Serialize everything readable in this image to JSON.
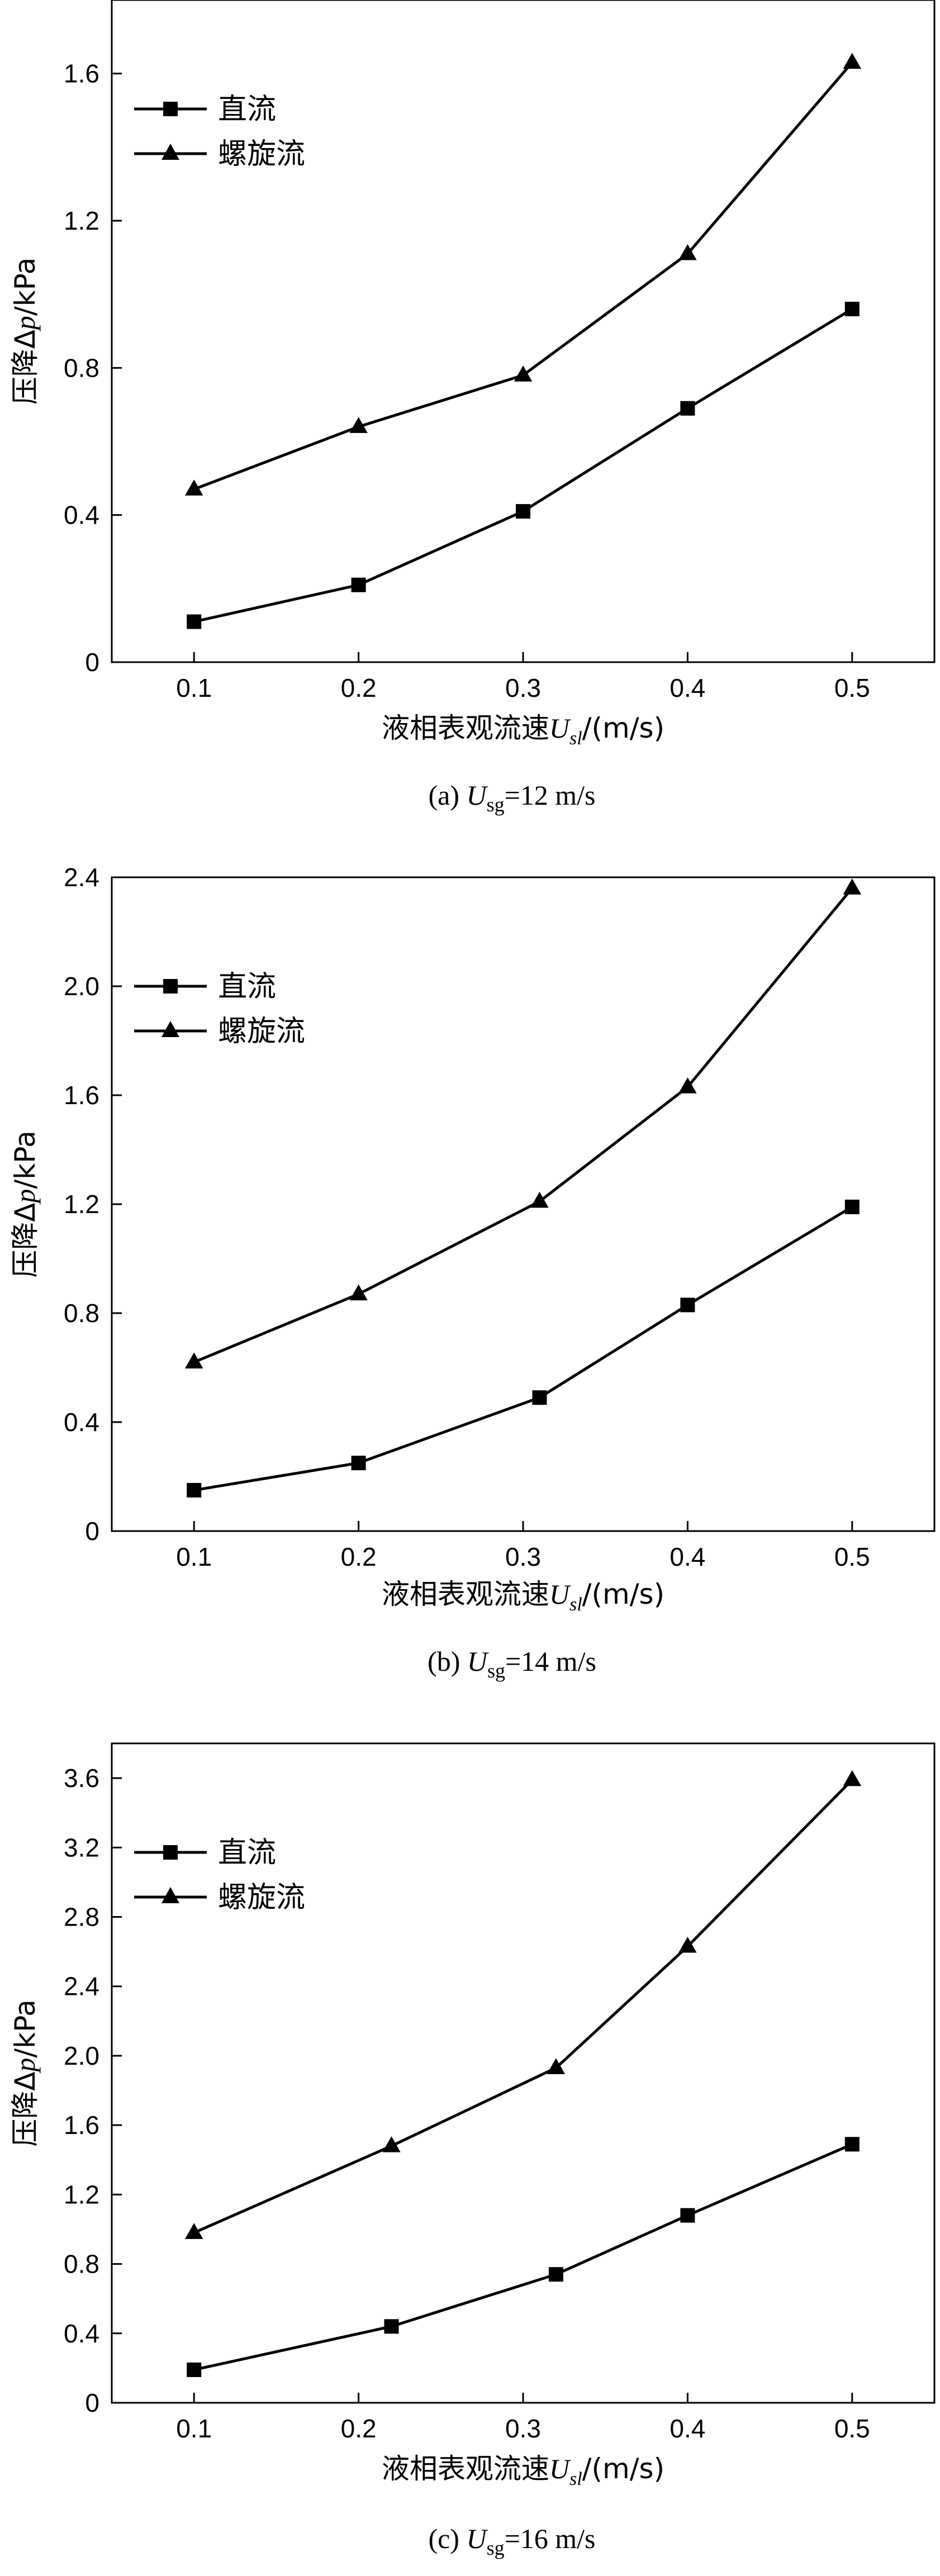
{
  "chart_data": [
    {
      "type": "line",
      "caption": {
        "prefix": "(a) ",
        "var": "U",
        "sub": "sg",
        "suffix": "=12 m/s"
      },
      "xlabel": {
        "text": "液相表观流速",
        "var": "U",
        "sub": "sl",
        "unit": "/(m/s)"
      },
      "ylabel": {
        "text": "压降Δ",
        "var": "p",
        "unit": "/kPa"
      },
      "xlim": [
        0.05,
        0.55
      ],
      "ylim": [
        0,
        1.8
      ],
      "x_ticks": [
        "0.1",
        "0.2",
        "0.3",
        "0.4",
        "0.5"
      ],
      "y_ticks": [
        "0",
        "0.4",
        "0.8",
        "1.2",
        "1.6"
      ],
      "legend_position": "top-left",
      "series": [
        {
          "name": "直流",
          "marker": "square",
          "x": [
            0.1,
            0.2,
            0.3,
            0.4,
            0.5
          ],
          "values": [
            0.11,
            0.21,
            0.41,
            0.69,
            0.96
          ]
        },
        {
          "name": "螺旋流",
          "marker": "triangle",
          "x": [
            0.1,
            0.2,
            0.3,
            0.4,
            0.5
          ],
          "values": [
            0.47,
            0.64,
            0.78,
            1.11,
            1.63
          ]
        }
      ]
    },
    {
      "type": "line",
      "caption": {
        "prefix": "(b) ",
        "var": "U",
        "sub": "sg",
        "suffix": "=14 m/s"
      },
      "xlabel": {
        "text": "液相表观流速",
        "var": "U",
        "sub": "sl",
        "unit": "/(m/s)"
      },
      "ylabel": {
        "text": "压降Δ",
        "var": "p",
        "unit": "/kPa"
      },
      "xlim": [
        0.05,
        0.55
      ],
      "ylim": [
        0,
        2.4
      ],
      "x_ticks": [
        "0.1",
        "0.2",
        "0.3",
        "0.4",
        "0.5"
      ],
      "y_ticks": [
        "0",
        "0.4",
        "0.8",
        "1.2",
        "1.6",
        "2.0",
        "2.4"
      ],
      "legend_position": "top-left",
      "series": [
        {
          "name": "直流",
          "marker": "square",
          "x": [
            0.1,
            0.2,
            0.31,
            0.4,
            0.5
          ],
          "values": [
            0.15,
            0.25,
            0.49,
            0.83,
            1.19
          ]
        },
        {
          "name": "螺旋流",
          "marker": "triangle",
          "x": [
            0.1,
            0.2,
            0.31,
            0.4,
            0.5
          ],
          "values": [
            0.62,
            0.87,
            1.21,
            1.63,
            2.36
          ]
        }
      ]
    },
    {
      "type": "line",
      "caption": {
        "prefix": "(c) ",
        "var": "U",
        "sub": "sg",
        "suffix": "=16 m/s"
      },
      "xlabel": {
        "text": "液相表观流速",
        "var": "U",
        "sub": "sl",
        "unit": "/(m/s)"
      },
      "ylabel": {
        "text": "压降Δ",
        "var": "p",
        "unit": "/kPa"
      },
      "xlim": [
        0.05,
        0.55
      ],
      "ylim": [
        0,
        3.8
      ],
      "x_ticks": [
        "0.1",
        "0.2",
        "0.3",
        "0.4",
        "0.5"
      ],
      "y_ticks": [
        "0",
        "0.4",
        "0.8",
        "1.2",
        "1.6",
        "2.0",
        "2.4",
        "2.8",
        "3.2",
        "3.6"
      ],
      "legend_position": "top-left",
      "series": [
        {
          "name": "直流",
          "marker": "square",
          "x": [
            0.1,
            0.22,
            0.32,
            0.4,
            0.5
          ],
          "values": [
            0.19,
            0.44,
            0.74,
            1.08,
            1.49
          ]
        },
        {
          "name": "螺旋流",
          "marker": "triangle",
          "x": [
            0.1,
            0.22,
            0.32,
            0.4,
            0.5
          ],
          "values": [
            0.98,
            1.48,
            1.93,
            2.63,
            3.59
          ]
        }
      ]
    }
  ]
}
